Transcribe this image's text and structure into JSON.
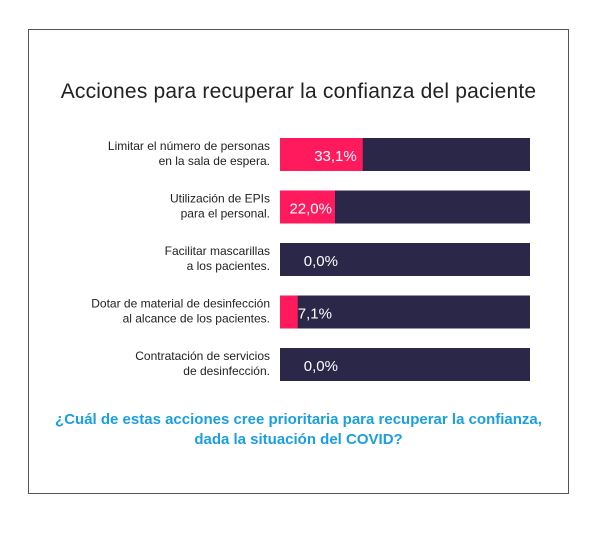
{
  "chart_data": {
    "type": "bar",
    "orientation": "horizontal",
    "title": "Acciones para recuperar la confianza del paciente",
    "categories": [
      [
        "Limitar el número de personas",
        "en la sala de espera."
      ],
      [
        "Utilización de EPIs",
        "para el personal."
      ],
      [
        "Facilitar mascarillas",
        "a los pacientes."
      ],
      [
        "Dotar de material de desinfección",
        "al alcance de los pacientes."
      ],
      [
        "Contratación de servicios",
        "de desinfección."
      ]
    ],
    "values": [
      33.1,
      22.0,
      0.0,
      7.1,
      0.0
    ],
    "value_labels": [
      "33,1%",
      "22,0%",
      "0,0%",
      "7,1%",
      "0,0%"
    ],
    "xlim": [
      0,
      100
    ],
    "colors": {
      "value": "#ff1a5e",
      "track": "#2b2748",
      "label_text": "#ffffff"
    }
  },
  "question": [
    "¿Cuál de estas acciones cree prioritaria para recuperar la confianza,",
    "dada la situación del COVID?"
  ]
}
